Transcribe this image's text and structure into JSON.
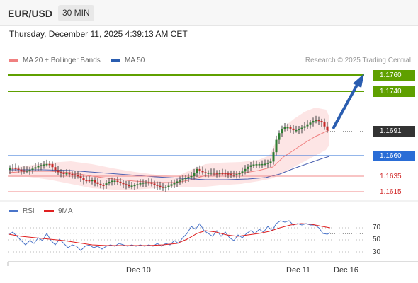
{
  "header": {
    "pair": "EUR/USD",
    "timeframe": "30 MIN"
  },
  "timestamp": "Thursday, December 11, 2025 4:39:13 AM CET",
  "legend": {
    "ma20": {
      "label": "MA 20 + Bollinger Bands",
      "color": "#f08080"
    },
    "ma50": {
      "label": "MA 50",
      "color": "#2a5db0"
    }
  },
  "credit": "Research © 2025 Trading Central",
  "levels": [
    {
      "label": "1.1760",
      "style": "green"
    },
    {
      "label": "1.1740",
      "style": "green"
    },
    {
      "label": "1.1691",
      "style": "dark"
    },
    {
      "label": "1.1660",
      "style": "blue"
    },
    {
      "label": "1.1635",
      "style": "red"
    },
    {
      "label": "1.1615",
      "style": "red"
    }
  ],
  "rsi_legend": {
    "rsi": {
      "label": "RSI",
      "color": "#4a74c9"
    },
    "ma9": {
      "label": "9MA",
      "color": "#e02020"
    }
  },
  "rsi_ticks": [
    "70",
    "50",
    "30"
  ],
  "x_labels": [
    "Dec 10",
    "Dec 11",
    "Dec 16"
  ]
}
